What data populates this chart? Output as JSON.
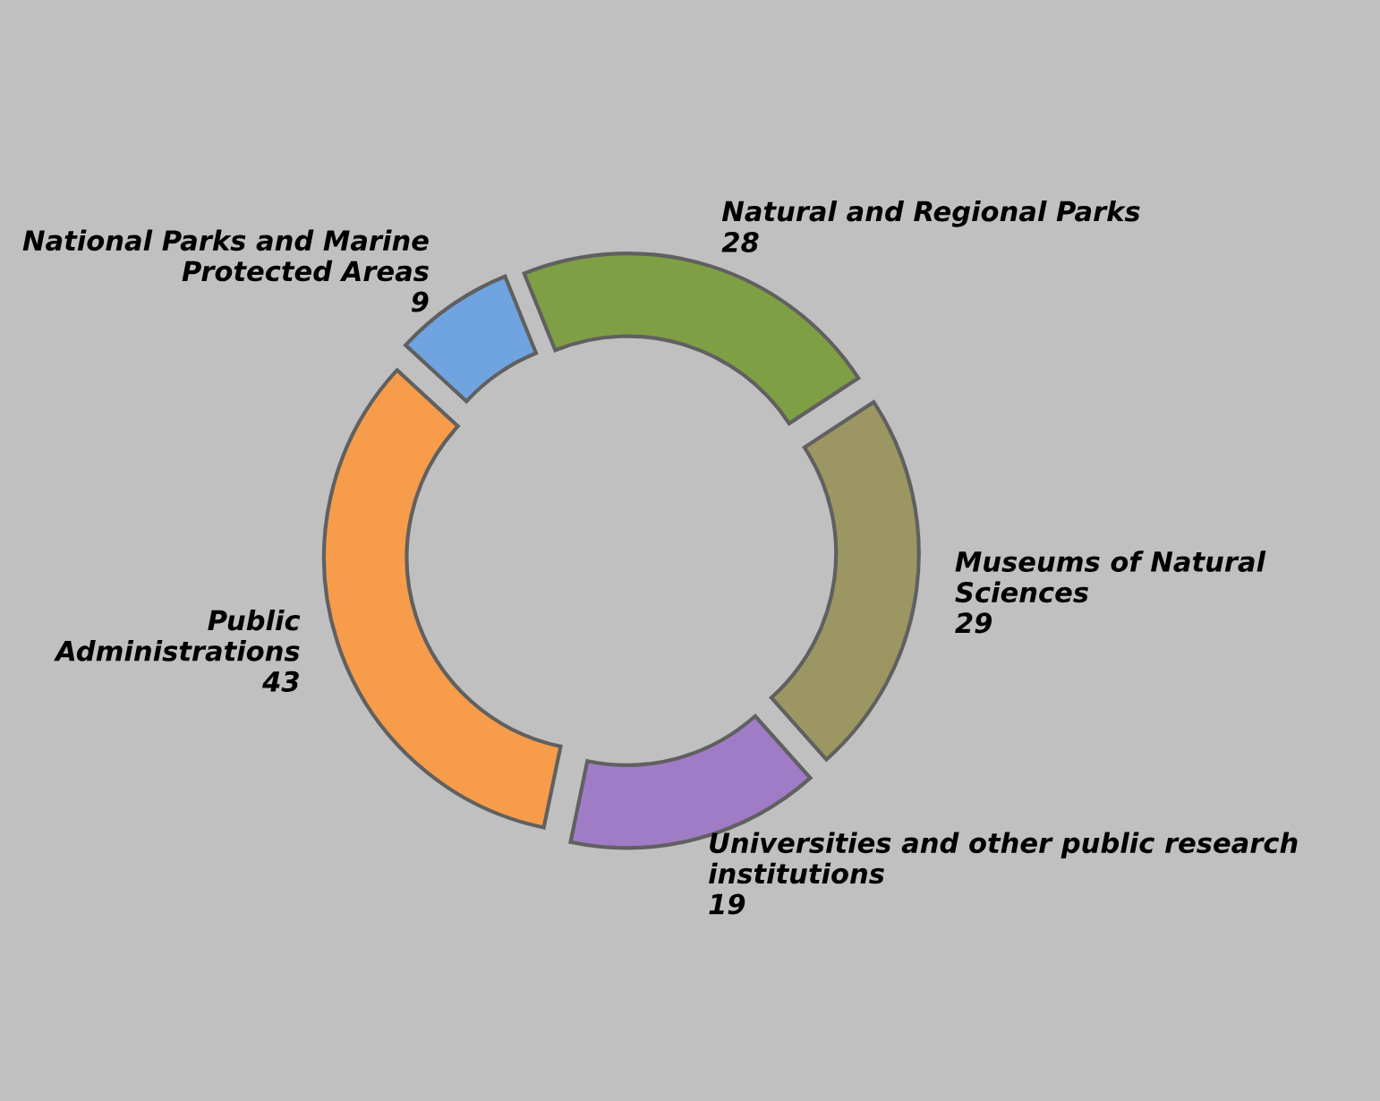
{
  "chart_data": {
    "type": "donut",
    "categories": [
      "Natural and Regional Parks",
      "Museums of Natural Sciences",
      "Universities and other public research institutions",
      "Public Administrations",
      "National Parks and Marine Protected Areas"
    ],
    "values": [
      28,
      29,
      19,
      43,
      9
    ],
    "colors": [
      "#7f9f45",
      "#9c9762",
      "#a07cc6",
      "#f79c4a",
      "#6fa4e0"
    ],
    "data_labels": true
  }
}
